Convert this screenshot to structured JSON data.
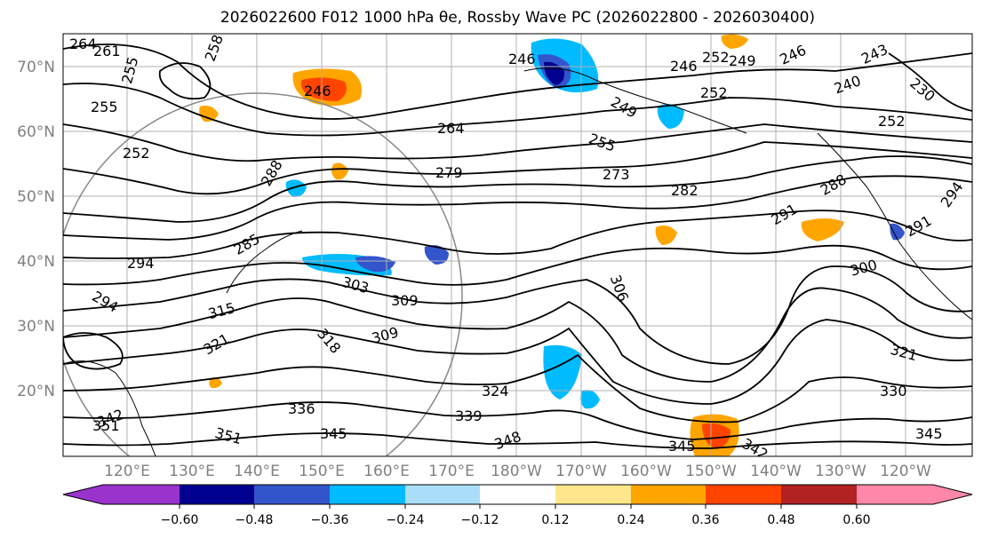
{
  "title": "2026022600 F012 1000 hPa θe, Rossby Wave PC (2026022800 - 2026030400)",
  "map": {
    "lat_ticks": [
      "70°N",
      "60°N",
      "50°N",
      "40°N",
      "30°N",
      "20°N"
    ],
    "lon_ticks": [
      "120°E",
      "130°E",
      "140°E",
      "150°E",
      "160°E",
      "170°E",
      "180°W",
      "170°W",
      "160°W",
      "150°W",
      "140°W",
      "130°W",
      "120°W"
    ],
    "contour_labels": [
      "264",
      "261",
      "255",
      "258",
      "246",
      "255",
      "252",
      "246",
      "252",
      "249",
      "246",
      "243",
      "240",
      "230",
      "246",
      "252",
      "249",
      "252",
      "264",
      "255",
      "273",
      "279",
      "282",
      "288",
      "291",
      "294",
      "291",
      "288",
      "285",
      "294",
      "303",
      "309",
      "306",
      "300",
      "294",
      "315",
      "321",
      "318",
      "309",
      "324",
      "336",
      "339",
      "345",
      "348",
      "351",
      "342",
      "351",
      "345",
      "342",
      "345",
      "330",
      "321"
    ],
    "colors": {
      "contour": "#000000",
      "grid": "#b0b0b0",
      "coast": "#000000"
    }
  },
  "colorbar": {
    "colors": [
      "#9933cc",
      "#000090",
      "#3355cc",
      "#00bbff",
      "#aaddf7",
      "#ffffff",
      "#ffe68a",
      "#ffa500",
      "#ff4400",
      "#b22222",
      "#ff88aa"
    ],
    "tick_labels": [
      "−0.60",
      "−0.48",
      "−0.36",
      "−0.24",
      "−0.12",
      "0.12",
      "0.24",
      "0.36",
      "0.48",
      "0.60"
    ]
  }
}
